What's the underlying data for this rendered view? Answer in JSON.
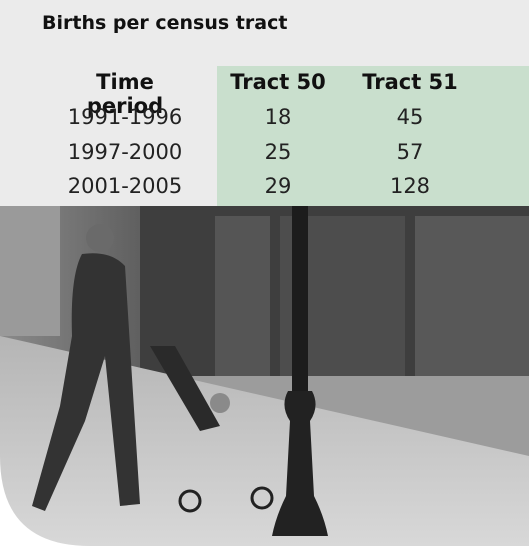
{
  "title": "Births per census tract",
  "table": {
    "header": [
      "Time period",
      "Tract 50",
      "Tract 51"
    ],
    "rows": [
      [
        "1991-1996",
        18,
        45
      ],
      [
        "1997-2000",
        25,
        57
      ],
      [
        "2001-2005",
        29,
        128
      ]
    ]
  }
}
